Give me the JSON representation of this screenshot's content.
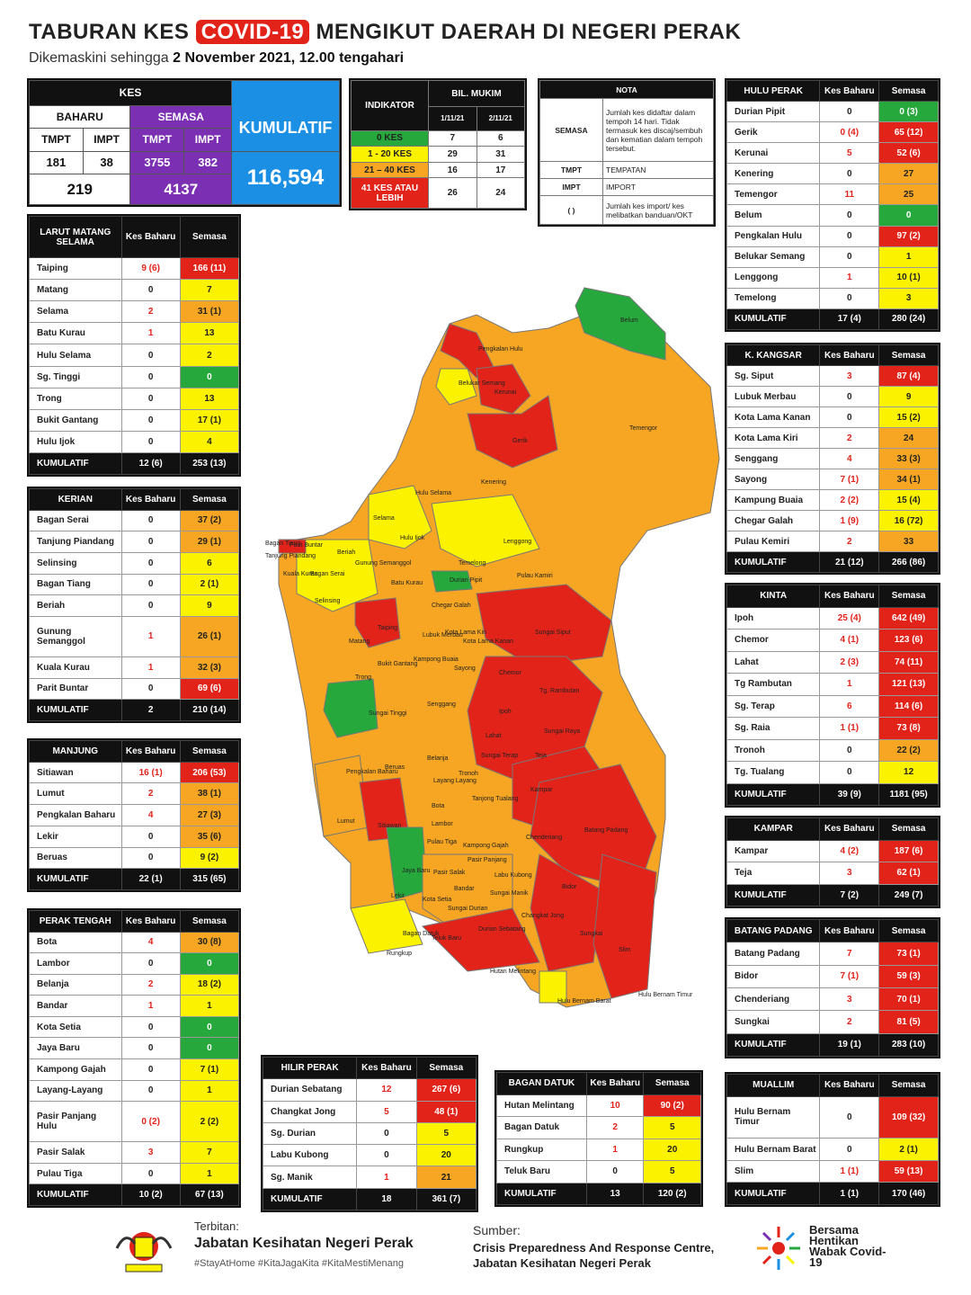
{
  "header": {
    "title_pre": "TABURAN KES",
    "title_hl": "COVID-19",
    "title_post": "MENGIKUT DAERAH DI NEGERI PERAK",
    "subtitle_pre": "Dikemaskini sehingga",
    "subtitle_bold": "2 November 2021, 12.00 tengahari"
  },
  "kes": {
    "title": "KES",
    "baharu": "BAHARU",
    "semasa": "SEMASA",
    "kumulatif_label": "KUMULATIF",
    "tmpt": "TMPT",
    "impt": "IMPT",
    "baharu_tmpt": "181",
    "baharu_impt": "38",
    "semasa_tmpt": "3755",
    "semasa_impt": "382",
    "baharu_total": "219",
    "semasa_total": "4137",
    "kumulatif": "116,594"
  },
  "indikator": {
    "title": "INDIKATOR",
    "bil_mukim": "BIL. MUKIM",
    "d1": "1/11/21",
    "d2": "2/11/21",
    "rows": [
      {
        "label": "0 KES",
        "v1": "7",
        "v2": "6"
      },
      {
        "label": "1 - 20 KES",
        "v1": "29",
        "v2": "31"
      },
      {
        "label": "21 – 40 KES",
        "v1": "16",
        "v2": "17"
      },
      {
        "label": "41 KES ATAU LEBIH",
        "v1": "26",
        "v2": "24"
      }
    ],
    "colors": [
      "#27a83c",
      "#fbf200",
      "#f6a623",
      "#e2231a"
    ]
  },
  "nota": {
    "title": "NOTA",
    "rows": [
      {
        "k": "SEMASA",
        "v": "Jumlah kes didaftar dalam tempoh 14 hari. Tidak termasuk kes discaj/sembuh dan kematian dalam tempoh tersebut."
      },
      {
        "k": "TMPT",
        "v": "TEMPATAN"
      },
      {
        "k": "IMPT",
        "v": "IMPORT"
      },
      {
        "k": "( )",
        "v": "Jumlah kes import/ kes melibatkan banduan/OKT"
      }
    ]
  },
  "districts": [
    {
      "name": "LARUT MATANG SELAMA",
      "rows": [
        [
          "Taiping",
          "9 (6)",
          "166 (11)",
          "r"
        ],
        [
          "Matang",
          "0",
          "7",
          "y"
        ],
        [
          "Selama",
          "2",
          "31 (1)",
          "o"
        ],
        [
          "Batu Kurau",
          "1",
          "13",
          "y"
        ],
        [
          "Hulu Selama",
          "0",
          "2",
          "y"
        ],
        [
          "Sg. Tinggi",
          "0",
          "0",
          "g"
        ],
        [
          "Trong",
          "0",
          "13",
          "y"
        ],
        [
          "Bukit Gantang",
          "0",
          "17 (1)",
          "y"
        ],
        [
          "Hulu Ijok",
          "0",
          "4",
          "y"
        ]
      ],
      "total": [
        "12 (6)",
        "253 (13)"
      ]
    },
    {
      "name": "KERIAN",
      "rows": [
        [
          "Bagan Serai",
          "0",
          "37 (2)",
          "o"
        ],
        [
          "Tanjung Piandang",
          "0",
          "29 (1)",
          "o"
        ],
        [
          "Selinsing",
          "0",
          "6",
          "y"
        ],
        [
          "Bagan Tiang",
          "0",
          "2 (1)",
          "y"
        ],
        [
          "Beriah",
          "0",
          "9",
          "y"
        ],
        [
          "Gunung Semanggol",
          "1",
          "26 (1)",
          "o"
        ],
        [
          "Kuala Kurau",
          "1",
          "32 (3)",
          "o"
        ],
        [
          "Parit Buntar",
          "0",
          "69 (6)",
          "r"
        ]
      ],
      "total": [
        "2",
        "210 (14)"
      ]
    },
    {
      "name": "MANJUNG",
      "rows": [
        [
          "Sitiawan",
          "16 (1)",
          "206 (53)",
          "r"
        ],
        [
          "Lumut",
          "2",
          "38 (1)",
          "o"
        ],
        [
          "Pengkalan Baharu",
          "4",
          "27 (3)",
          "o"
        ],
        [
          "Lekir",
          "0",
          "35 (6)",
          "o"
        ],
        [
          "Beruas",
          "0",
          "9 (2)",
          "y"
        ]
      ],
      "total": [
        "22 (1)",
        "315 (65)"
      ]
    },
    {
      "name": "PERAK TENGAH",
      "rows": [
        [
          "Bota",
          "4",
          "30 (8)",
          "o"
        ],
        [
          "Lambor",
          "0",
          "0",
          "g"
        ],
        [
          "Belanja",
          "2",
          "18 (2)",
          "y"
        ],
        [
          "Bandar",
          "1",
          "1",
          "y"
        ],
        [
          "Kota Setia",
          "0",
          "0",
          "g"
        ],
        [
          "Jaya Baru",
          "0",
          "0",
          "g"
        ],
        [
          "Kampong Gajah",
          "0",
          "7 (1)",
          "y"
        ],
        [
          "Layang-Layang",
          "0",
          "1",
          "y"
        ],
        [
          "Pasir Panjang Hulu",
          "0 (2)",
          "2 (2)",
          "y"
        ],
        [
          "Pasir Salak",
          "3",
          "7",
          "y"
        ],
        [
          "Pulau Tiga",
          "0",
          "1",
          "y"
        ]
      ],
      "total": [
        "10 (2)",
        "67 (13)"
      ]
    },
    {
      "name": "HILIR PERAK",
      "rows": [
        [
          "Durian Sebatang",
          "12",
          "267 (6)",
          "r"
        ],
        [
          "Changkat Jong",
          "5",
          "48 (1)",
          "r"
        ],
        [
          "Sg. Durian",
          "0",
          "5",
          "y"
        ],
        [
          "Labu Kubong",
          "0",
          "20",
          "y"
        ],
        [
          "Sg. Manik",
          "1",
          "21",
          "o"
        ]
      ],
      "total": [
        "18",
        "361 (7)"
      ]
    },
    {
      "name": "BAGAN DATUK",
      "rows": [
        [
          "Hutan Melintang",
          "10",
          "90 (2)",
          "r"
        ],
        [
          "Bagan Datuk",
          "2",
          "5",
          "y"
        ],
        [
          "Rungkup",
          "1",
          "20",
          "y"
        ],
        [
          "Teluk Baru",
          "0",
          "5",
          "y"
        ]
      ],
      "total": [
        "13",
        "120 (2)"
      ]
    },
    {
      "name": "HULU PERAK",
      "rows": [
        [
          "Durian Pipit",
          "0",
          "0 (3)",
          "g"
        ],
        [
          "Gerik",
          "0 (4)",
          "65 (12)",
          "r"
        ],
        [
          "Kerunai",
          "5",
          "52 (6)",
          "r"
        ],
        [
          "Kenering",
          "0",
          "27",
          "o"
        ],
        [
          "Temengor",
          "11",
          "25",
          "o"
        ],
        [
          "Belum",
          "0",
          "0",
          "g"
        ],
        [
          "Pengkalan Hulu",
          "0",
          "97 (2)",
          "r"
        ],
        [
          "Belukar Semang",
          "0",
          "1",
          "y"
        ],
        [
          "Lenggong",
          "1",
          "10 (1)",
          "y"
        ],
        [
          "Temelong",
          "0",
          "3",
          "y"
        ]
      ],
      "total": [
        "17 (4)",
        "280 (24)"
      ]
    },
    {
      "name": "K. KANGSAR",
      "rows": [
        [
          "Sg. Siput",
          "3",
          "87 (4)",
          "r"
        ],
        [
          "Lubuk Merbau",
          "0",
          "9",
          "y"
        ],
        [
          "Kota Lama Kanan",
          "0",
          "15 (2)",
          "y"
        ],
        [
          "Kota Lama Kiri",
          "2",
          "24",
          "o"
        ],
        [
          "Senggang",
          "4",
          "33 (3)",
          "o"
        ],
        [
          "Sayong",
          "7 (1)",
          "34 (1)",
          "o"
        ],
        [
          "Kampung Buaia",
          "2 (2)",
          "15 (4)",
          "y"
        ],
        [
          "Chegar Galah",
          "1 (9)",
          "16 (72)",
          "y"
        ],
        [
          "Pulau Kemiri",
          "2",
          "33",
          "o"
        ]
      ],
      "total": [
        "21 (12)",
        "266 (86)"
      ]
    },
    {
      "name": "KINTA",
      "rows": [
        [
          "Ipoh",
          "25 (4)",
          "642 (49)",
          "r"
        ],
        [
          "Chemor",
          "4 (1)",
          "123 (6)",
          "r"
        ],
        [
          "Lahat",
          "2 (3)",
          "74 (11)",
          "r"
        ],
        [
          "Tg Rambutan",
          "1",
          "121 (13)",
          "r"
        ],
        [
          "Sg. Terap",
          "6",
          "114 (6)",
          "r"
        ],
        [
          "Sg. Raia",
          "1 (1)",
          "73 (8)",
          "r"
        ],
        [
          "Tronoh",
          "0",
          "22 (2)",
          "o"
        ],
        [
          "Tg. Tualang",
          "0",
          "12",
          "y"
        ]
      ],
      "total": [
        "39 (9)",
        "1181 (95)"
      ]
    },
    {
      "name": "KAMPAR",
      "rows": [
        [
          "Kampar",
          "4 (2)",
          "187 (6)",
          "r"
        ],
        [
          "Teja",
          "3",
          "62 (1)",
          "r"
        ]
      ],
      "total": [
        "7 (2)",
        "249 (7)"
      ]
    },
    {
      "name": "BATANG PADANG",
      "rows": [
        [
          "Batang Padang",
          "7",
          "73 (1)",
          "r"
        ],
        [
          "Bidor",
          "7 (1)",
          "59 (3)",
          "r"
        ],
        [
          "Chenderiang",
          "3",
          "70 (1)",
          "r"
        ],
        [
          "Sungkai",
          "2",
          "81 (5)",
          "r"
        ]
      ],
      "total": [
        "19 (1)",
        "283 (10)"
      ]
    },
    {
      "name": "MUALLIM",
      "rows": [
        [
          "Hulu Bernam Timur",
          "0",
          "109 (32)",
          "r"
        ],
        [
          "Hulu Bernam Barat",
          "0",
          "2 (1)",
          "y"
        ],
        [
          "Slim",
          "1 (1)",
          "59 (13)",
          "r"
        ]
      ],
      "total": [
        "1 (1)",
        "170 (46)"
      ]
    }
  ],
  "labels": {
    "kes_baharu": "Kes Baharu",
    "semasa": "Semasa",
    "kumulatif": "KUMULATIF"
  },
  "map_labels": [
    "Belum",
    "Pengkalan Hulu",
    "Belukar Semang",
    "Kerunai",
    "Gerik",
    "Temengor",
    "Kenering",
    "Hulu Selama",
    "Selama",
    "Hulu Ijok",
    "Lenggong",
    "Temelong",
    "Durian Pipit",
    "Pulau Kamiri",
    "Bagan Tiang",
    "Parit Buntar",
    "Tanjung Piandang",
    "Beriah",
    "Kuala Kurau",
    "Bagan Serai",
    "Gunung Semanggol",
    "Batu Kurau",
    "Selinsing",
    "Chegar Galah",
    "Sungai Siput",
    "Taiping",
    "Lubuk Merbau",
    "Kota Lama Kiri",
    "Kota Lama Kanan",
    "Matang",
    "Kampong Buaia",
    "Bukit Gantang",
    "Sayong",
    "Trong",
    "Chemor",
    "Tg. Rambutan",
    "Senggang",
    "Sungai Tinggi",
    "Ipoh",
    "Sungai Raya",
    "Lahat",
    "Sungai Terap",
    "Teja",
    "Pengkalan Baharu",
    "Beruas",
    "Belanja",
    "Layang Layang",
    "Tronoh",
    "Tanjong Tualang",
    "Kampar",
    "Bota",
    "Lumut",
    "Sitiawan",
    "Lambor",
    "Chenderiang",
    "Batang Padang",
    "Pulau Tiga",
    "Kampong Gajah",
    "Pasir Panjang",
    "Jaya Baru",
    "Pasir Salak",
    "Labu Kubong",
    "Bandar",
    "Sungai Manik",
    "Bidor",
    "Lekir",
    "Kota Setia",
    "Sungai Durian",
    "Changkat Jong",
    "Durian Sebatang",
    "Bagan Datuk",
    "Teluk Baru",
    "Sungkai",
    "Slim",
    "Rungkup",
    "Hutan Melintang",
    "Hulu Bernam Barat",
    "Hulu Bernam Timur"
  ],
  "footer": {
    "terbitan": "Terbitan:",
    "publisher": "Jabatan Kesihatan Negeri Perak",
    "hashtags": "#StayAtHome #KitaJagaKita #KitaMestiMenang",
    "sumber": "Sumber:",
    "source": "Crisis Preparedness And Response Centre, Jabatan Kesihatan Negeri Perak",
    "campaign": "Bersama Hentikan Wabak Covid-19"
  }
}
